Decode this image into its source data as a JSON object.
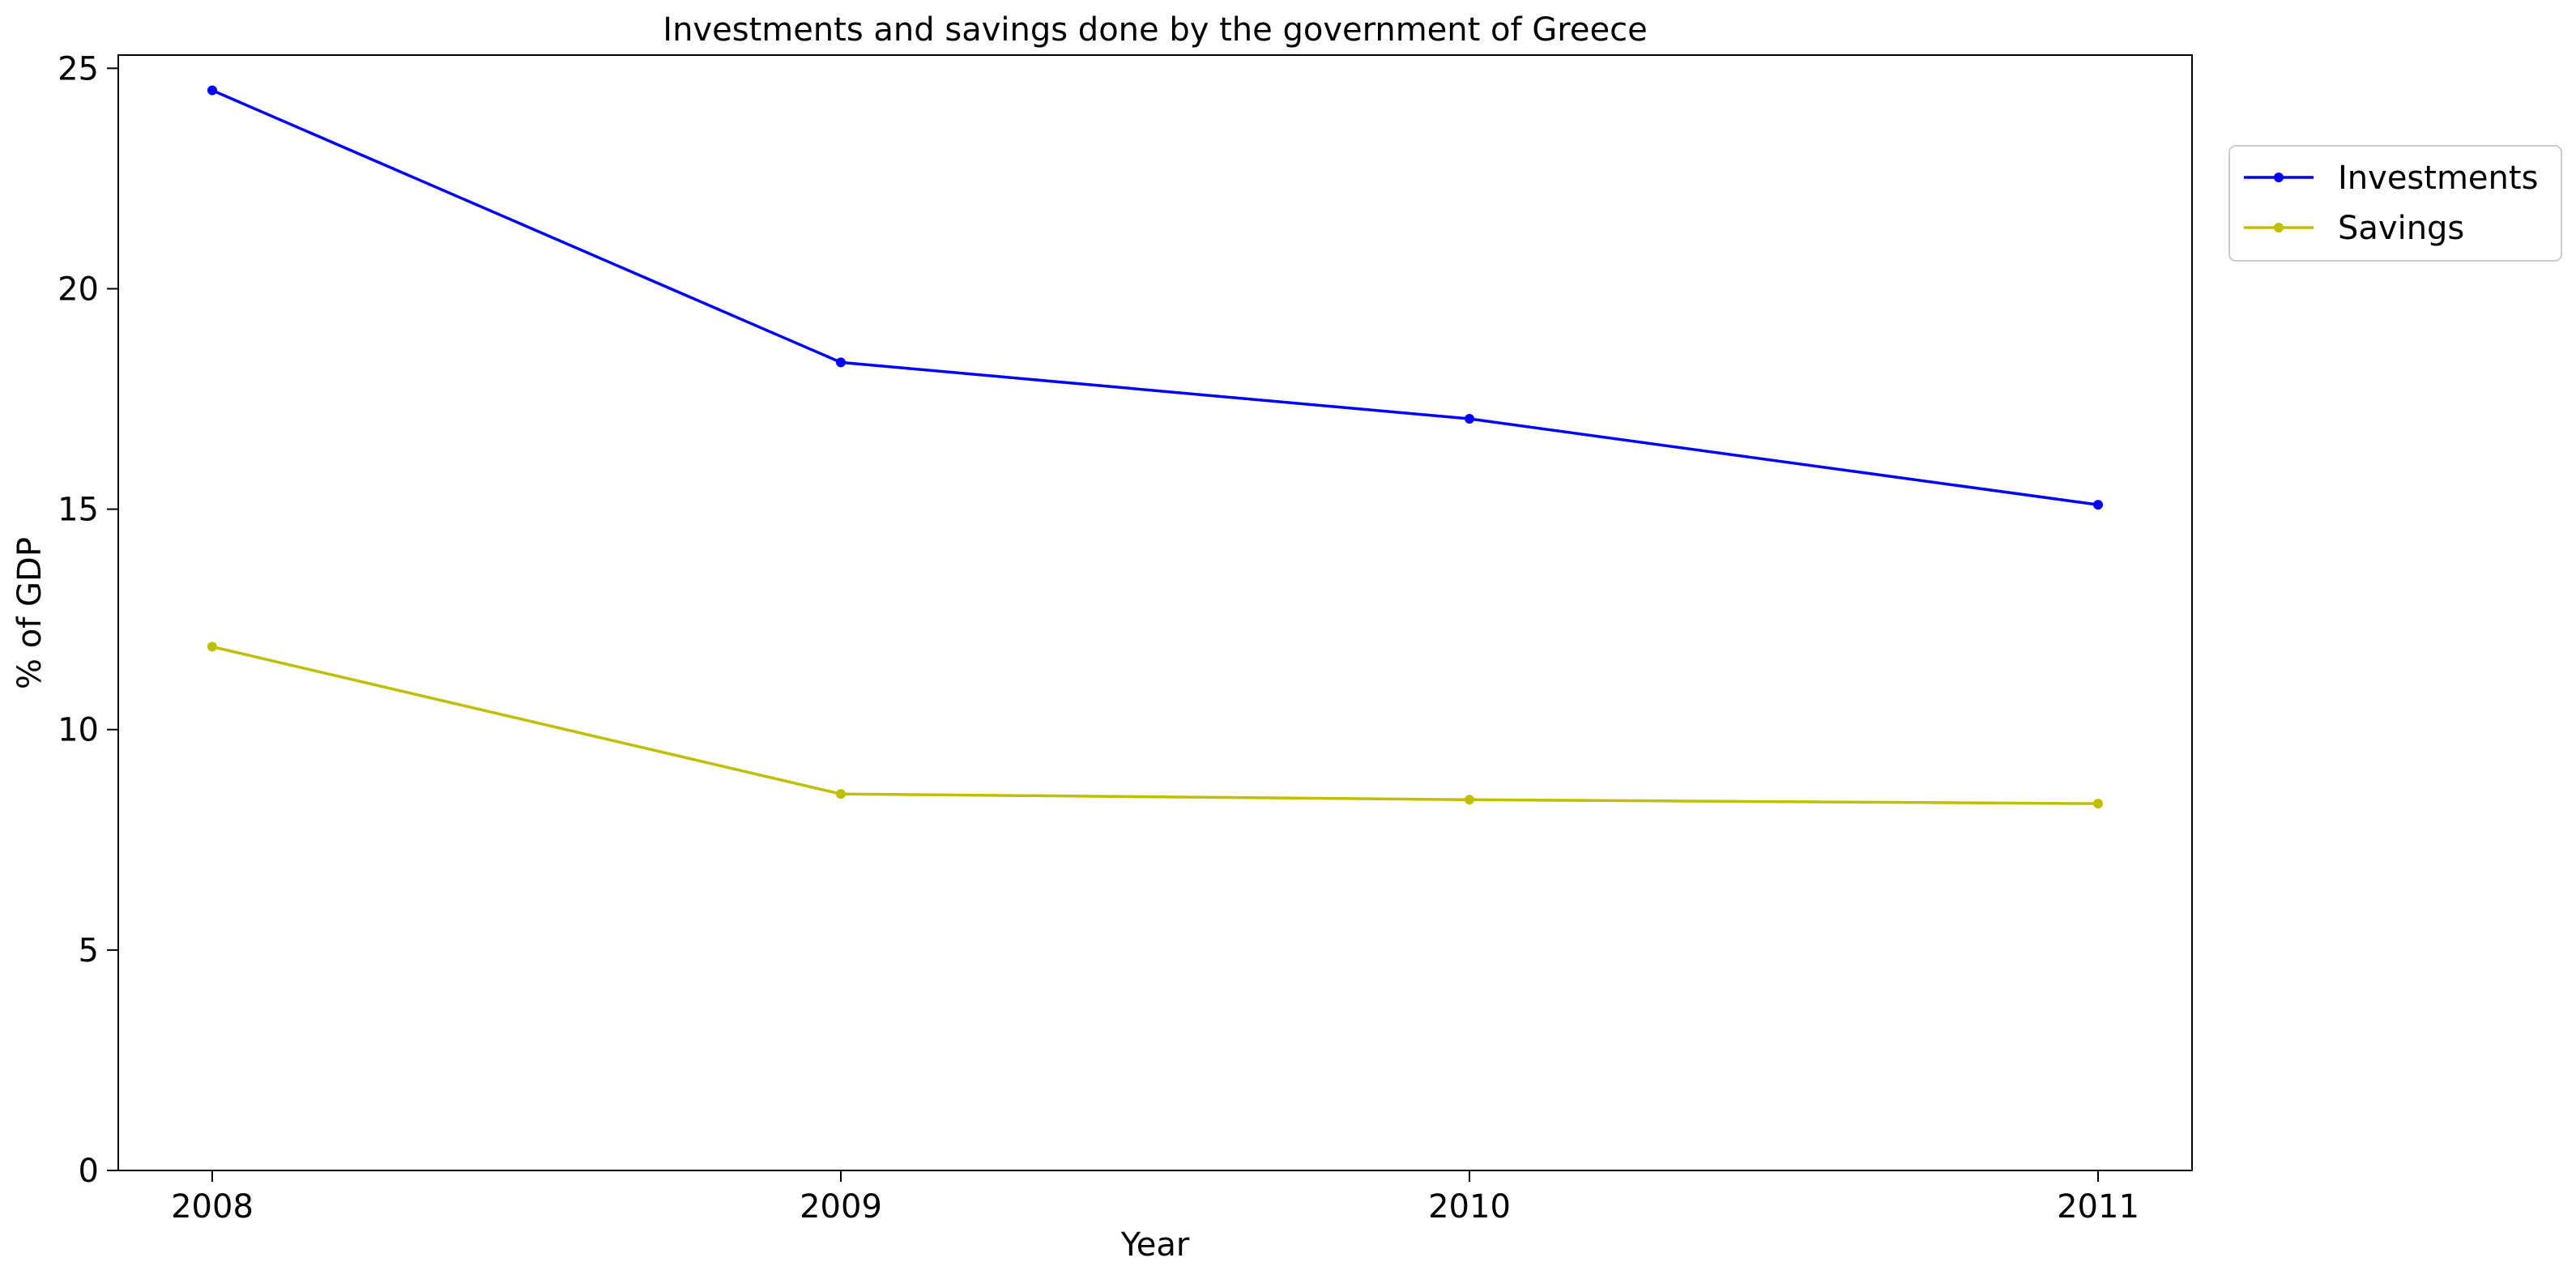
{
  "chart_data": {
    "type": "line",
    "title": "Investments and savings done by the government of Greece",
    "xlabel": "Year",
    "ylabel": "% of GDP",
    "categories": [
      "2008",
      "2009",
      "2010",
      "2011"
    ],
    "ylim": [
      0,
      25.3
    ],
    "yticks": [
      0,
      5,
      10,
      15,
      20,
      25
    ],
    "grid": false,
    "legend_position": "upper-right-outside",
    "series": [
      {
        "name": "Investments",
        "color": "#0000ff",
        "values": [
          24.5,
          18.33,
          17.05,
          15.1
        ]
      },
      {
        "name": "Savings",
        "color": "#bfbf00",
        "values": [
          11.88,
          8.54,
          8.41,
          8.32
        ]
      }
    ]
  }
}
